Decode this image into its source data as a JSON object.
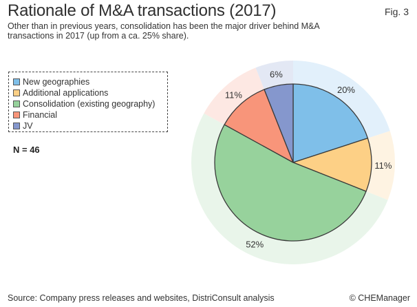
{
  "figure": {
    "label": "Fig. 3",
    "sample_size": "N = 46",
    "source": "Source: Company press releases and websites, DistriConsult analysis",
    "copyright": "© CHEManager"
  },
  "chart_data": {
    "type": "pie",
    "title": "Rationale of M&A transactions (2017)",
    "subtitle": "Other than in previous years, consolidation has been the major driver behind M&A transactions in 2017 (up from a ca. 25% share).",
    "legend_position": "left",
    "categories": [
      "New geographies",
      "Additional applications",
      "Consolidation (existing geography)",
      "Financial",
      "JV"
    ],
    "values": [
      20,
      11,
      52,
      11,
      6
    ],
    "value_labels": [
      "20%",
      "11%",
      "52%",
      "11%",
      "6%"
    ],
    "colors": [
      "#7fbfe9",
      "#fdd086",
      "#97d29c",
      "#f8957a",
      "#8597cd"
    ],
    "ring_colors": [
      "#e2f0fb",
      "#fef3e2",
      "#e9f5ea",
      "#fde8e3",
      "#e3e8f4"
    ],
    "stroke_color": "#3a3a3a"
  }
}
